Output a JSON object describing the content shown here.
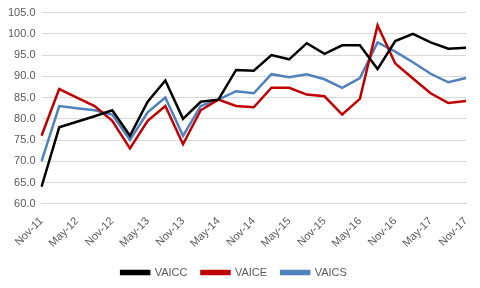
{
  "chart_data": {
    "type": "line",
    "categories": [
      "Nov-11",
      null,
      "May-12",
      null,
      "Nov-12",
      null,
      "May-13",
      null,
      "Nov-13",
      null,
      "May-14",
      null,
      "Nov-14",
      null,
      "May-15",
      null,
      "Nov-15",
      null,
      "May-16",
      null,
      "Nov-16",
      null,
      "May-17",
      null,
      "Nov-17"
    ],
    "series": [
      {
        "name": "VAICC",
        "color": "#000000",
        "values": [
          64,
          78,
          79.3,
          80.6,
          82,
          76,
          84,
          89,
          80,
          84,
          84.5,
          91.5,
          91.3,
          95,
          94,
          97.8,
          95.3,
          97.3,
          97.3,
          91.7,
          98.3,
          100,
          98,
          96.5,
          96.7
        ]
      },
      {
        "name": "VAICE",
        "color": "#c00000",
        "values": [
          76,
          87,
          85,
          83,
          79.5,
          73,
          79.5,
          83,
          74,
          82,
          84.5,
          83,
          82.7,
          87.3,
          87.3,
          85.7,
          85.3,
          81,
          84.7,
          102,
          93,
          89.5,
          86,
          83.7,
          84.2
        ]
      },
      {
        "name": "VAICS",
        "color": "#4f81bd",
        "values": [
          70,
          83,
          82.5,
          82,
          81,
          75,
          81.5,
          85,
          76,
          83,
          84.5,
          86.5,
          86,
          90.5,
          89.8,
          90.5,
          89.3,
          87.3,
          89.6,
          98,
          95.8,
          93.3,
          90.6,
          88.6,
          89.6
        ]
      }
    ],
    "ylim": [
      60,
      105
    ],
    "yticks": [
      {
        "value": 60,
        "label": "60.0"
      },
      {
        "value": 65,
        "label": "65.0"
      },
      {
        "value": 70,
        "label": "70.0"
      },
      {
        "value": 75,
        "label": "75.0"
      },
      {
        "value": 80,
        "label": "80.0"
      },
      {
        "value": 85,
        "label": "85.0"
      },
      {
        "value": 90,
        "label": "90.0"
      },
      {
        "value": 95,
        "label": "95.0"
      },
      {
        "value": 100,
        "label": "100.0"
      },
      {
        "value": 105,
        "label": "105.0"
      }
    ],
    "grid": true,
    "legend": "bottom"
  }
}
